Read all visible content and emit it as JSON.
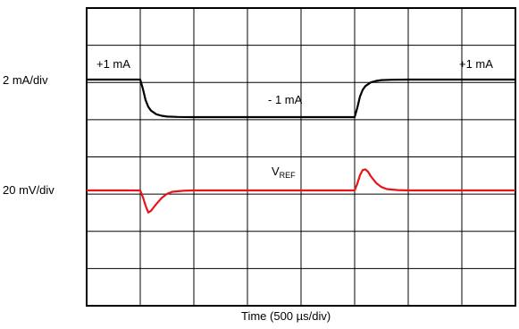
{
  "chart_data": {
    "type": "line",
    "xlabel": "Time (500 µs/div)",
    "x_divisions": 8,
    "y_divisions": 8,
    "grid": true,
    "x_unit": "div",
    "series": [
      {
        "name": "",
        "scale_label": "2 mA/div",
        "color": "#000000",
        "x": [
          0,
          1.0,
          1.05,
          1.1,
          1.15,
          1.2,
          1.3,
          1.4,
          1.5,
          1.7,
          2.0,
          3.0,
          4.0,
          5.0,
          5.05,
          5.1,
          5.15,
          5.2,
          5.3,
          5.4,
          5.5,
          5.7,
          6.0,
          8.0
        ],
        "y": [
          1,
          1,
          0.5,
          -0.1,
          -0.45,
          -0.65,
          -0.85,
          -0.93,
          -0.97,
          -0.99,
          -1,
          -1,
          -1,
          -1,
          -0.5,
          0.1,
          0.45,
          0.65,
          0.85,
          0.93,
          0.97,
          0.99,
          1,
          1
        ],
        "annotations": [
          "+1 mA",
          "- 1 mA",
          "+1 mA"
        ]
      },
      {
        "name": "VREF",
        "name_main": "V",
        "name_sub": "REF",
        "scale_label": "20 mV/div",
        "color": "#e8141b",
        "x": [
          0,
          1.0,
          1.05,
          1.1,
          1.15,
          1.2,
          1.25,
          1.3,
          1.4,
          1.5,
          1.6,
          1.8,
          2.0,
          3.0,
          4.0,
          5.0,
          5.05,
          5.1,
          5.15,
          5.2,
          5.25,
          5.3,
          5.4,
          5.5,
          5.6,
          5.8,
          6.0,
          8.0
        ],
        "y": [
          0,
          0,
          -0.2,
          -0.45,
          -0.65,
          -0.6,
          -0.5,
          -0.4,
          -0.22,
          -0.1,
          -0.04,
          -0.01,
          0,
          0,
          0,
          0,
          0.2,
          0.45,
          0.6,
          0.62,
          0.55,
          0.42,
          0.22,
          0.1,
          0.04,
          0.01,
          0,
          0
        ]
      }
    ]
  }
}
